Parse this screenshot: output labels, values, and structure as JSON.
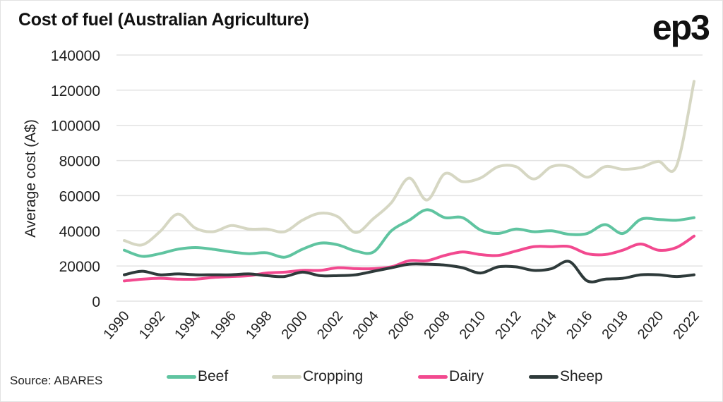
{
  "title": "Cost of fuel (Australian Agriculture)",
  "logo": "ep3",
  "source": "Source: ABARES",
  "chart_data": {
    "type": "line",
    "title": "Cost of fuel (Australian Agriculture)",
    "xlabel": "",
    "ylabel": "Average cost (A$)",
    "ylim": [
      0,
      140000
    ],
    "yticks": [
      0,
      20000,
      40000,
      60000,
      80000,
      100000,
      120000,
      140000
    ],
    "xtick_labels": [
      "1990",
      "1992",
      "1994",
      "1996",
      "1998",
      "2000",
      "2002",
      "2004",
      "2006",
      "2008",
      "2010",
      "2012",
      "2014",
      "2016",
      "2018",
      "2020",
      "2022"
    ],
    "grid": true,
    "legend_position": "bottom",
    "x": [
      1990,
      1991,
      1992,
      1993,
      1994,
      1995,
      1996,
      1997,
      1998,
      1999,
      2000,
      2001,
      2002,
      2003,
      2004,
      2005,
      2006,
      2007,
      2008,
      2009,
      2010,
      2011,
      2012,
      2013,
      2014,
      2015,
      2016,
      2017,
      2018,
      2019,
      2020,
      2021,
      2022
    ],
    "series": [
      {
        "name": "Beef",
        "color": "#5fc4a0",
        "values": [
          29000,
          25500,
          27000,
          29500,
          30500,
          29500,
          28000,
          27000,
          27500,
          25000,
          29500,
          33000,
          32000,
          28500,
          28000,
          40000,
          46000,
          52000,
          47500,
          47500,
          40500,
          38500,
          41000,
          39500,
          40000,
          38000,
          38500,
          43500,
          38500,
          46500,
          46500,
          46000,
          47500
        ]
      },
      {
        "name": "Cropping",
        "color": "#d6d7c3",
        "values": [
          34500,
          32000,
          39500,
          49500,
          41500,
          39500,
          43000,
          41000,
          41000,
          39500,
          46000,
          50000,
          48000,
          39000,
          47000,
          56000,
          70000,
          57500,
          72500,
          68000,
          70000,
          76500,
          76500,
          69500,
          76500,
          76500,
          70500,
          76500,
          75000,
          76000,
          79500,
          76500,
          125000
        ]
      },
      {
        "name": "Dairy",
        "color": "#f2498f",
        "values": [
          11500,
          12500,
          13000,
          12500,
          12500,
          13500,
          14000,
          14500,
          16000,
          16500,
          17500,
          17500,
          19000,
          18500,
          18500,
          19500,
          23000,
          23000,
          26000,
          28000,
          26500,
          26000,
          28500,
          31000,
          31000,
          31000,
          27000,
          26500,
          29000,
          32500,
          29000,
          30500,
          37000
        ]
      },
      {
        "name": "Sheep",
        "color": "#2e3a3a",
        "values": [
          15000,
          17000,
          15000,
          15500,
          15000,
          15000,
          15000,
          15500,
          14500,
          14000,
          16500,
          14500,
          14500,
          15000,
          17000,
          19000,
          21000,
          21000,
          20500,
          19000,
          16000,
          19500,
          19500,
          17500,
          18500,
          22500,
          11500,
          12500,
          13000,
          15000,
          15000,
          14000,
          15000
        ]
      }
    ]
  }
}
